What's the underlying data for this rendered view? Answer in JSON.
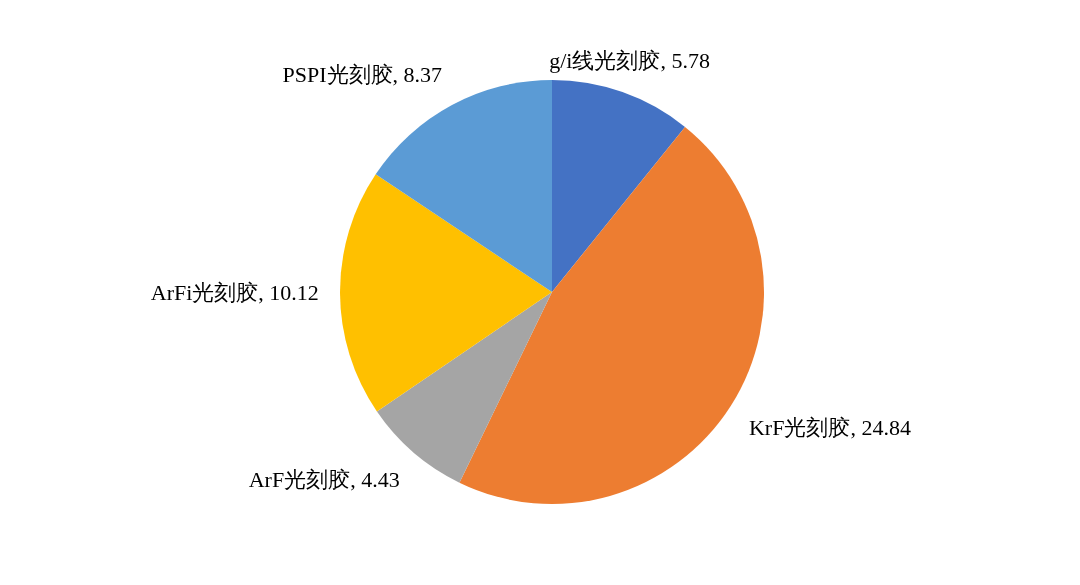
{
  "chart_data": {
    "type": "pie",
    "categories": [
      "g/i线光刻胶",
      "KrF光刻胶",
      "ArF光刻胶",
      "ArFi光刻胶",
      "PSPI光刻胶"
    ],
    "values": [
      5.78,
      24.84,
      4.43,
      10.12,
      8.37
    ],
    "colors": [
      "#4472c4",
      "#ed7d31",
      "#a5a5a5",
      "#ffc000",
      "#5b9bd5"
    ],
    "value_labels": [
      ", 5.78",
      ", 24.84",
      ", 4.43",
      ", 10.12",
      ", 8.37"
    ]
  }
}
